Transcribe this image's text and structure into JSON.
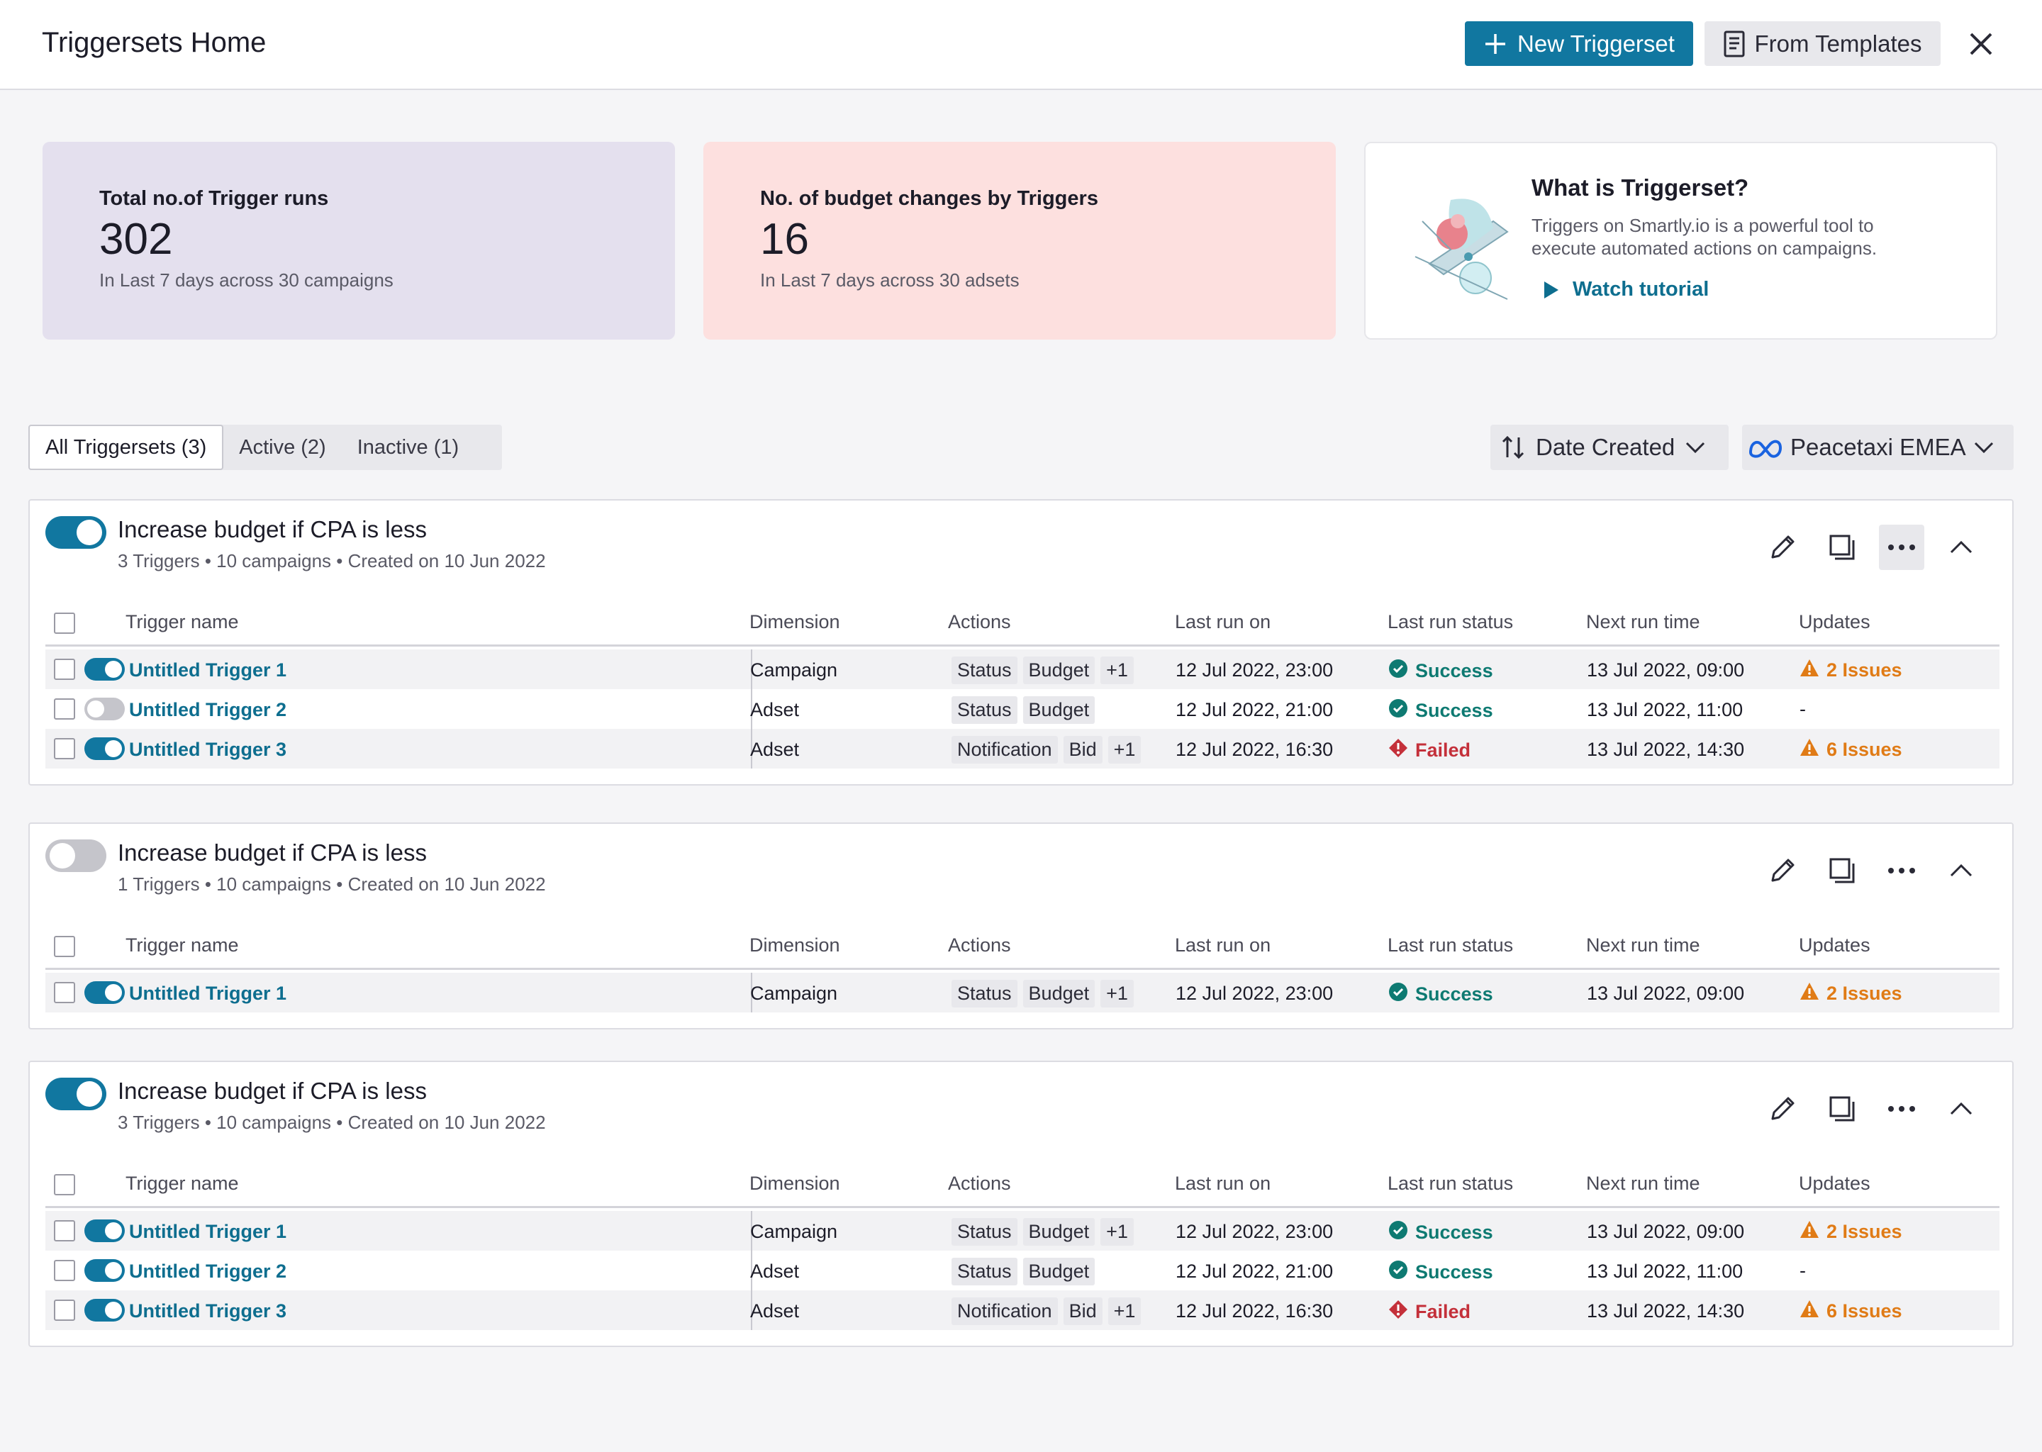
{
  "header": {
    "title": "Triggersets Home",
    "new_button": "New Triggerset",
    "templates_button": "From Templates"
  },
  "stats": {
    "runs": {
      "label": "Total no.of Trigger runs",
      "value": "302",
      "sub": "In Last 7 days across 30 campaigns"
    },
    "budget": {
      "label": "No. of budget changes by Triggers",
      "value": "16",
      "sub": "In Last 7 days across 30 adsets"
    }
  },
  "promo": {
    "title": "What is Triggerset?",
    "description": "Triggers on Smartly.io is a powerful tool to execute automated actions on campaigns.",
    "link": "Watch tutorial"
  },
  "tabs": [
    "All Triggersets (3)",
    "Active (2)",
    "Inactive (1)"
  ],
  "sort": {
    "label": "Date Created"
  },
  "account": {
    "label": "Peacetaxi EMEA"
  },
  "columns": [
    "Trigger name",
    "Dimension",
    "Actions",
    "Last run on",
    "Last run status",
    "Next run time",
    "Updates"
  ],
  "colors": {
    "accent": "#1177a0",
    "success": "#0e7a72",
    "failed": "#c4303a",
    "warning": "#e07b16"
  },
  "groups": [
    {
      "enabled": true,
      "title": "Increase budget if CPA is less",
      "meta": "3 Triggers • 10 campaigns • Created on 10 Jun 2022",
      "rows": [
        {
          "enabled": true,
          "name": "Untitled Trigger 1",
          "dimension": "Campaign",
          "actions": [
            "Status",
            "Budget",
            "+1"
          ],
          "last_run": "12 Jul 2022, 23:00",
          "status": "Success",
          "next_run": "13 Jul 2022, 09:00",
          "updates": "2 Issues"
        },
        {
          "enabled": false,
          "name": "Untitled Trigger 2",
          "dimension": "Adset",
          "actions": [
            "Status",
            "Budget"
          ],
          "last_run": "12 Jul 2022, 21:00",
          "status": "Success",
          "next_run": "13 Jul 2022, 11:00",
          "updates": "-"
        },
        {
          "enabled": true,
          "name": "Untitled Trigger 3",
          "dimension": "Adset",
          "actions": [
            "Notification",
            "Bid",
            "+1"
          ],
          "last_run": "12 Jul 2022, 16:30",
          "status": "Failed",
          "next_run": "13 Jul 2022, 14:30",
          "updates": "6 Issues"
        }
      ]
    },
    {
      "enabled": false,
      "title": "Increase budget if CPA is less",
      "meta": "1 Triggers • 10 campaigns • Created on 10 Jun 2022",
      "rows": [
        {
          "enabled": true,
          "name": "Untitled Trigger 1",
          "dimension": "Campaign",
          "actions": [
            "Status",
            "Budget",
            "+1"
          ],
          "last_run": "12 Jul 2022, 23:00",
          "status": "Success",
          "next_run": "13 Jul 2022, 09:00",
          "updates": "2 Issues"
        }
      ]
    },
    {
      "enabled": true,
      "title": "Increase budget if CPA is less",
      "meta": "3 Triggers • 10 campaigns • Created on 10 Jun 2022",
      "rows": [
        {
          "enabled": true,
          "name": "Untitled Trigger 1",
          "dimension": "Campaign",
          "actions": [
            "Status",
            "Budget",
            "+1"
          ],
          "last_run": "12 Jul 2022, 23:00",
          "status": "Success",
          "next_run": "13 Jul 2022, 09:00",
          "updates": "2 Issues"
        },
        {
          "enabled": true,
          "name": "Untitled Trigger 2",
          "dimension": "Adset",
          "actions": [
            "Status",
            "Budget"
          ],
          "last_run": "12 Jul 2022, 21:00",
          "status": "Success",
          "next_run": "13 Jul 2022, 11:00",
          "updates": "-"
        },
        {
          "enabled": true,
          "name": "Untitled Trigger 3",
          "dimension": "Adset",
          "actions": [
            "Notification",
            "Bid",
            "+1"
          ],
          "last_run": "12 Jul 2022, 16:30",
          "status": "Failed",
          "next_run": "13 Jul 2022, 14:30",
          "updates": "6 Issues"
        }
      ]
    }
  ]
}
